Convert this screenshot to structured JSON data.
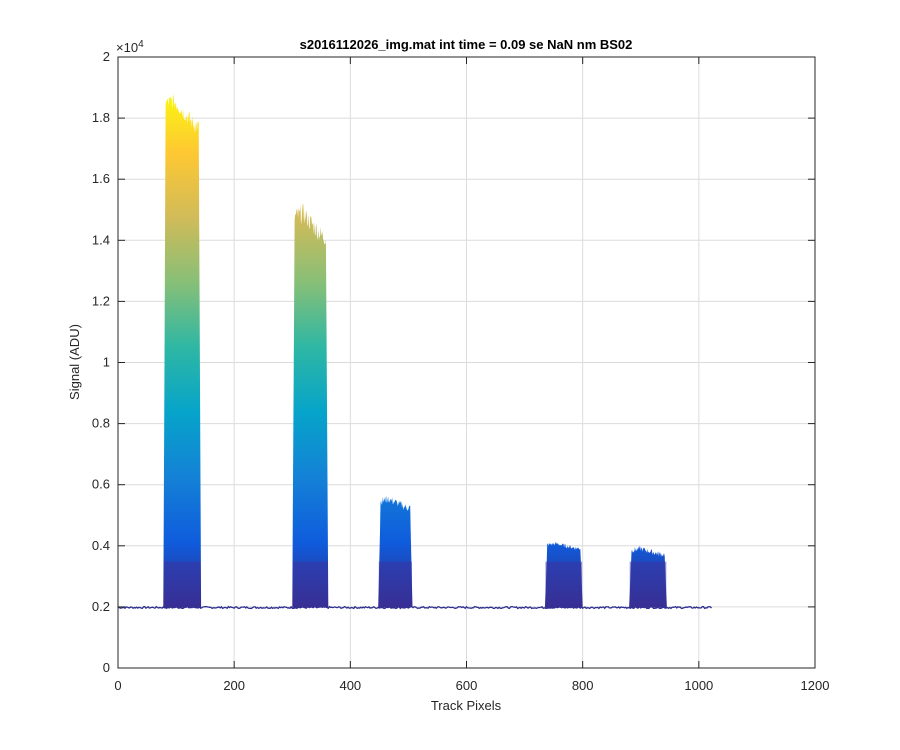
{
  "chart_data": {
    "type": "area",
    "title": "s2016112026_img.mat int time = 0.09 se  NaN nm BS02",
    "xlabel": "Track Pixels",
    "ylabel": "Signal (ADU)",
    "exponent_base": "×10",
    "exponent_power": "4",
    "xlim": [
      0,
      1200
    ],
    "ylim": [
      0,
      20000
    ],
    "x_ticks": [
      0,
      200,
      400,
      600,
      800,
      1000,
      1200
    ],
    "x_tick_labels": [
      "0",
      "200",
      "400",
      "600",
      "800",
      "1000",
      "1200"
    ],
    "y_ticks": [
      0,
      2000,
      4000,
      6000,
      8000,
      10000,
      12000,
      14000,
      16000,
      18000,
      20000
    ],
    "y_tick_labels": [
      "0",
      "0.2",
      "0.4",
      "0.6",
      "0.8",
      "1",
      "1.2",
      "1.4",
      "1.6",
      "1.8",
      "2"
    ],
    "grid": true,
    "baseline": 1980,
    "track_end": 1023,
    "peaks": [
      {
        "x_start": 78,
        "x_end": 143,
        "top": 18000,
        "max": 18600
      },
      {
        "x_start": 300,
        "x_end": 362,
        "top": 14300,
        "max": 15000
      },
      {
        "x_start": 448,
        "x_end": 507,
        "top": 5300,
        "max": 5600
      },
      {
        "x_start": 735,
        "x_end": 800,
        "top": 3950,
        "max": 4100
      },
      {
        "x_start": 880,
        "x_end": 945,
        "top": 3750,
        "max": 3950
      }
    ],
    "colormap": [
      "#352a87",
      "#0f5cdd",
      "#1481d6",
      "#06a4ca",
      "#2eb7a4",
      "#87bf77",
      "#d1bb59",
      "#fec832",
      "#f9fb0e"
    ]
  }
}
